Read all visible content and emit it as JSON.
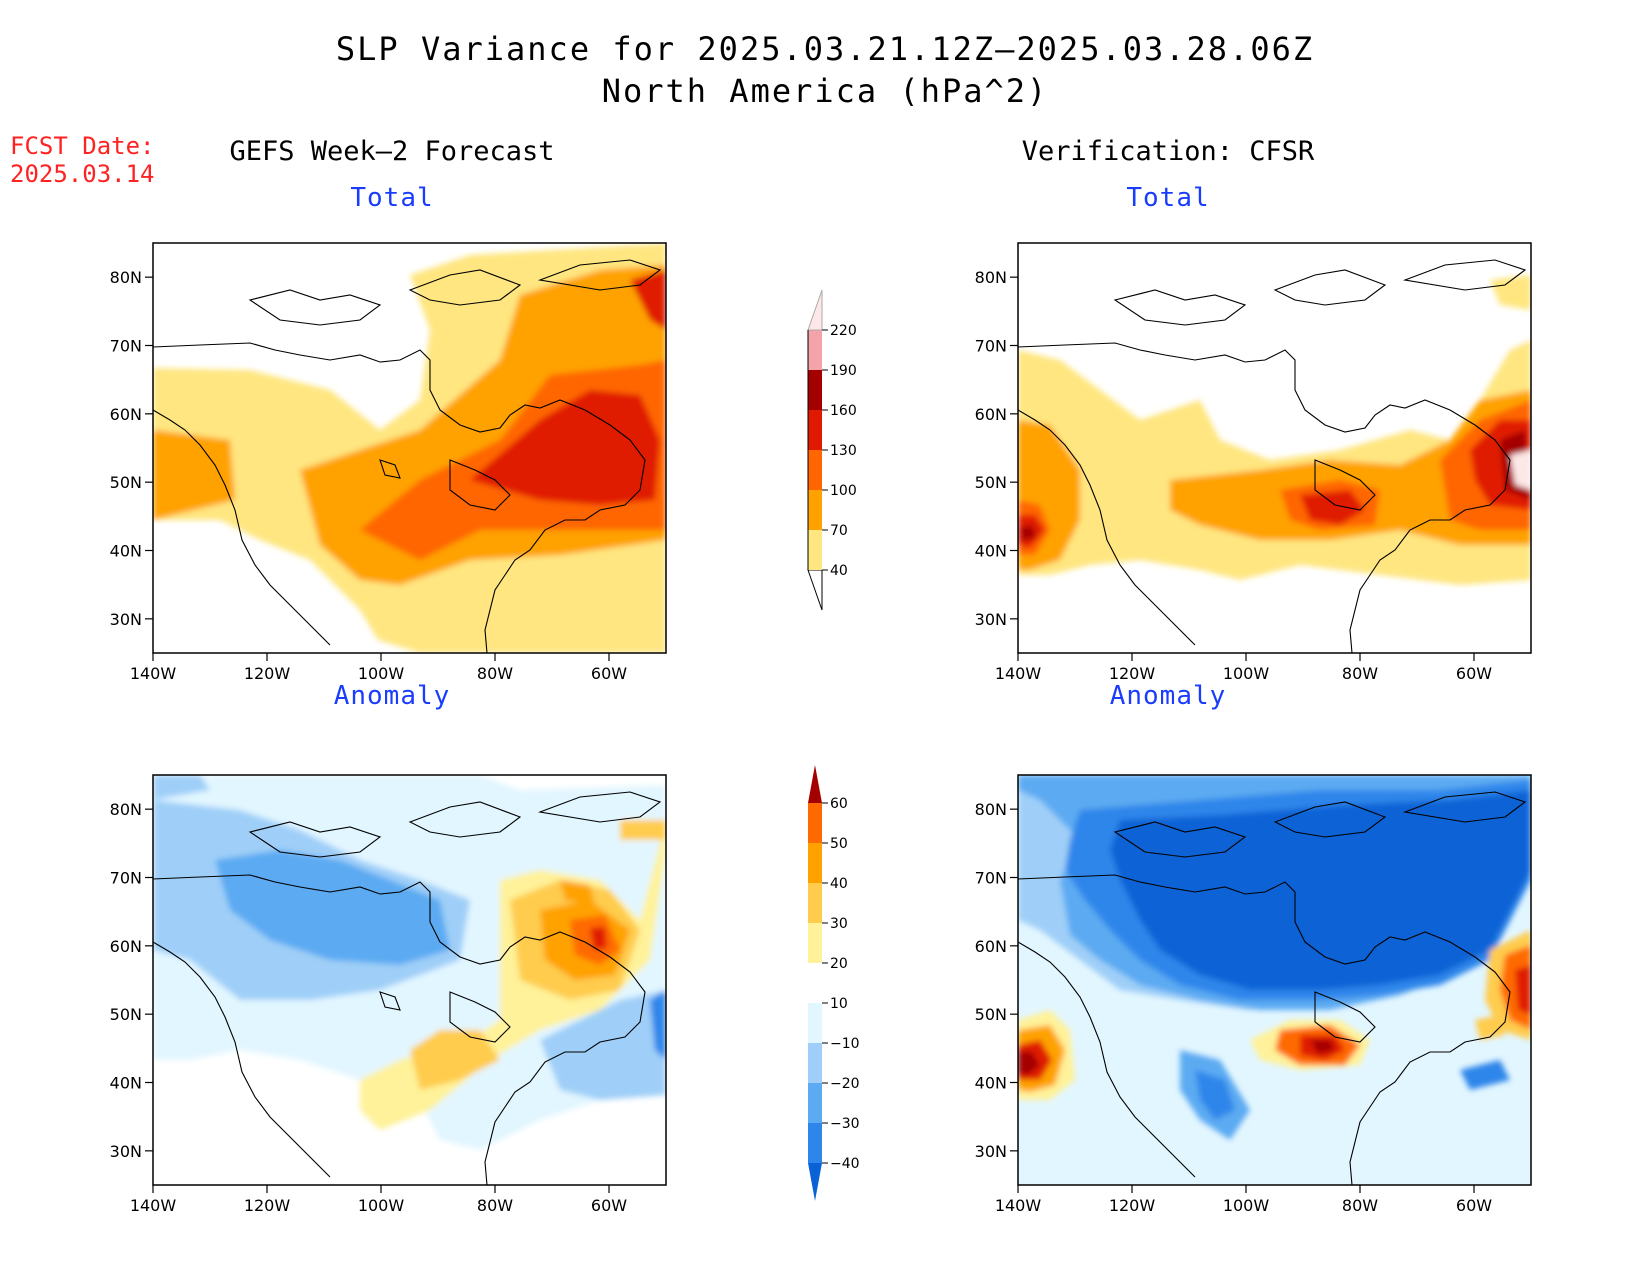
{
  "title": {
    "line1": "SLP Variance for 2025.03.21.12Z–2025.03.28.06Z",
    "line2": "North America (hPa^2)"
  },
  "fcst_date": {
    "label": "FCST Date:",
    "value": "2025.03.14"
  },
  "columns": {
    "left": "GEFS Week–2 Forecast",
    "right": "Verification: CFSR"
  },
  "panels": {
    "tl": "Total",
    "tr": "Total",
    "bl": "Anomaly",
    "br": "Anomaly"
  },
  "axes": {
    "lat_labels": [
      "80N",
      "70N",
      "60N",
      "50N",
      "40N",
      "30N"
    ],
    "lat_values": [
      80,
      70,
      60,
      50,
      40,
      30
    ],
    "lon_labels": [
      "140W",
      "120W",
      "100W",
      "80W",
      "60W"
    ],
    "lon_values": [
      -140,
      -120,
      -100,
      -80,
      -60
    ],
    "lon_range": [
      -140,
      -50
    ],
    "lat_range": [
      25,
      85
    ]
  },
  "colorbar_total": {
    "levels": [
      "40",
      "70",
      "100",
      "130",
      "160",
      "190",
      "220"
    ],
    "colors": [
      "#ffffff",
      "#ffe680",
      "#ffa200",
      "#ff6600",
      "#e01a00",
      "#a50000",
      "#f4a3a8",
      "#fde7e7"
    ]
  },
  "colorbar_anom": {
    "levels": [
      "−40",
      "−30",
      "−20",
      "−10",
      "10",
      "20",
      "30",
      "40",
      "50",
      "60"
    ],
    "colors": [
      "#0a63d6",
      "#2f86ea",
      "#5caaf2",
      "#9fcff8",
      "#e2f6ff",
      "#ffffff",
      "#fff29a",
      "#ffcc4d",
      "#ffa200",
      "#ff6a00",
      "#e01a00",
      "#a50000"
    ]
  },
  "chart_data": {
    "type": "heatmap",
    "units": "hPa^2",
    "panels": [
      {
        "name": "GEFS Week–2 Forecast Total",
        "features": [
          {
            "region": "eastern Canada / Labrador (~68W, 55N)",
            "value_range": [
              130,
              160
            ]
          },
          {
            "region": "Greenland (~55W, 78N)",
            "value_range": [
              130,
              160
            ]
          },
          {
            "region": "Great Lakes to Atlantic",
            "value_range": [
              70,
              130
            ]
          },
          {
            "region": "Pacific off BC (~140W, 50N)",
            "value_range": [
              70,
              100
            ]
          }
        ]
      },
      {
        "name": "Verification: CFSR Total",
        "features": [
          {
            "region": "Newfoundland (~52W, 50N)",
            "value_range": [
              190,
              220
            ]
          },
          {
            "region": "Great Lakes (~82W, 45N)",
            "value_range": [
              100,
              130
            ]
          },
          {
            "region": "Pacific (~138W, 43N)",
            "value_range": [
              130,
              160
            ]
          }
        ]
      },
      {
        "name": "GEFS Week–2 Forecast Anomaly",
        "features": [
          {
            "region": "Labrador (~60W, 62N)",
            "value_range": [
              40,
              50
            ]
          },
          {
            "region": "Great Lakes (~85W, 43N)",
            "value_range": [
              20,
              30
            ]
          },
          {
            "region": "Yukon / NW Canada (~110W, 65N)",
            "value_range": [
              -30,
              -20
            ]
          }
        ]
      },
      {
        "name": "Verification: CFSR Anomaly",
        "features": [
          {
            "region": "Great Lakes (~82W, 45N)",
            "value_range": [
              50,
              60
            ]
          },
          {
            "region": "Pacific (~138W, 42N)",
            "value_range": [
              50,
              60
            ]
          },
          {
            "region": "Arctic / northern Canada",
            "value_range": [
              -40,
              -30
            ]
          }
        ]
      }
    ]
  }
}
